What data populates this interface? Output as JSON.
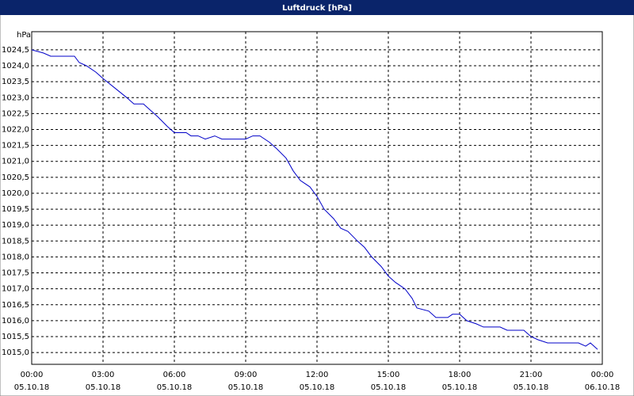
{
  "chart_data": {
    "type": "line",
    "title": "Luftdruck [hPa]",
    "y_unit": "hPa",
    "x": [
      0,
      0.5,
      0.8,
      1.8,
      2.0,
      2.3,
      2.7,
      3.0,
      3.5,
      4.0,
      4.3,
      4.7,
      5.0,
      5.3,
      5.7,
      6.0,
      6.5,
      6.7,
      7.0,
      7.3,
      7.7,
      8.0,
      9.0,
      9.3,
      9.6,
      10.0,
      10.3,
      10.7,
      11.0,
      11.3,
      11.7,
      12.0,
      12.3,
      12.7,
      13.0,
      13.3,
      13.7,
      14.0,
      14.3,
      14.7,
      15.0,
      15.3,
      15.7,
      16.0,
      16.2,
      16.7,
      17.0,
      17.5,
      17.7,
      18.0,
      18.3,
      18.7,
      19.0,
      19.7,
      20.0,
      20.7,
      21.0,
      21.3,
      21.7,
      23.0,
      23.3,
      23.5,
      23.8
    ],
    "series": [
      {
        "name": "Luftdruck",
        "color": "#0000c8",
        "values": [
          1024.5,
          1024.4,
          1024.3,
          1024.3,
          1024.1,
          1024.0,
          1023.8,
          1023.6,
          1023.3,
          1023.0,
          1022.8,
          1022.8,
          1022.6,
          1022.4,
          1022.1,
          1021.9,
          1021.9,
          1021.8,
          1021.8,
          1021.7,
          1021.8,
          1021.7,
          1021.7,
          1021.8,
          1021.8,
          1021.6,
          1021.4,
          1021.1,
          1020.7,
          1020.4,
          1020.2,
          1019.9,
          1019.5,
          1019.2,
          1018.9,
          1018.8,
          1018.5,
          1018.3,
          1018.0,
          1017.7,
          1017.4,
          1017.2,
          1017.0,
          1016.7,
          1016.4,
          1016.3,
          1016.1,
          1016.1,
          1016.2,
          1016.2,
          1016.0,
          1015.9,
          1015.8,
          1015.8,
          1015.7,
          1015.7,
          1015.5,
          1015.4,
          1015.3,
          1015.3,
          1015.2,
          1015.3,
          1015.1
        ]
      }
    ],
    "xlim": [
      0,
      24
    ],
    "xticks": [
      {
        "value": 0,
        "label": "00:00",
        "date": "05.10.18"
      },
      {
        "value": 3,
        "label": "03:00",
        "date": "05.10.18"
      },
      {
        "value": 6,
        "label": "06:00",
        "date": "05.10.18"
      },
      {
        "value": 9,
        "label": "09:00",
        "date": "05.10.18"
      },
      {
        "value": 12,
        "label": "12:00",
        "date": "05.10.18"
      },
      {
        "value": 15,
        "label": "15:00",
        "date": "05.10.18"
      },
      {
        "value": 18,
        "label": "18:00",
        "date": "05.10.18"
      },
      {
        "value": 21,
        "label": "21:00",
        "date": "05.10.18"
      },
      {
        "value": 24,
        "label": "00:00",
        "date": "06.10.18"
      }
    ],
    "ylim": [
      1014.63,
      1025.07
    ],
    "yticks": [
      {
        "value": 1015,
        "label": "1015,0"
      },
      {
        "value": 1015.5,
        "label": "1015,5"
      },
      {
        "value": 1016,
        "label": "1016,0"
      },
      {
        "value": 1016.5,
        "label": "1016,5"
      },
      {
        "value": 1017,
        "label": "1017,0"
      },
      {
        "value": 1017.5,
        "label": "1017,5"
      },
      {
        "value": 1018,
        "label": "1018,0"
      },
      {
        "value": 1018.5,
        "label": "1018,5"
      },
      {
        "value": 1019,
        "label": "1019,0"
      },
      {
        "value": 1019.5,
        "label": "1019,5"
      },
      {
        "value": 1020,
        "label": "1020,0"
      },
      {
        "value": 1020.5,
        "label": "1020,5"
      },
      {
        "value": 1021,
        "label": "1021,0"
      },
      {
        "value": 1021.5,
        "label": "1021,5"
      },
      {
        "value": 1022,
        "label": "1022,0"
      },
      {
        "value": 1022.5,
        "label": "1022,5"
      },
      {
        "value": 1023,
        "label": "1023,0"
      },
      {
        "value": 1023.5,
        "label": "1023,5"
      },
      {
        "value": 1024,
        "label": "1024,0"
      },
      {
        "value": 1024.5,
        "label": "1024,5"
      }
    ],
    "grid": true
  }
}
